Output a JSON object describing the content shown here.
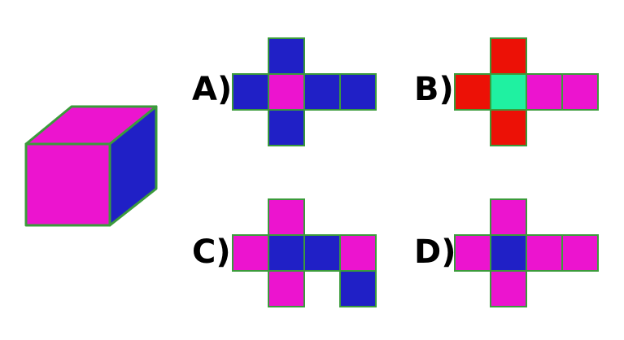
{
  "colors": {
    "magenta": "#ec14cf",
    "blue": "#2020c6",
    "red": "#ec1106",
    "green": "#1ff1a1",
    "edge": "#3b9b3b"
  },
  "cube": {
    "faces": {
      "front": "magenta",
      "top": "magenta",
      "right": "blue"
    }
  },
  "options": [
    {
      "label": "A)",
      "cells": [
        {
          "col": 1,
          "row": 0,
          "color": "blue"
        },
        {
          "col": 0,
          "row": 1,
          "color": "blue"
        },
        {
          "col": 1,
          "row": 1,
          "color": "magenta"
        },
        {
          "col": 2,
          "row": 1,
          "color": "blue"
        },
        {
          "col": 3,
          "row": 1,
          "color": "blue"
        },
        {
          "col": 1,
          "row": 2,
          "color": "blue"
        }
      ]
    },
    {
      "label": "B)",
      "cells": [
        {
          "col": 1,
          "row": 0,
          "color": "red"
        },
        {
          "col": 0,
          "row": 1,
          "color": "red"
        },
        {
          "col": 1,
          "row": 1,
          "color": "green"
        },
        {
          "col": 2,
          "row": 1,
          "color": "magenta"
        },
        {
          "col": 3,
          "row": 1,
          "color": "magenta"
        },
        {
          "col": 1,
          "row": 2,
          "color": "red"
        }
      ]
    },
    {
      "label": "C)",
      "cells": [
        {
          "col": 1,
          "row": 0,
          "color": "magenta"
        },
        {
          "col": 0,
          "row": 1,
          "color": "magenta"
        },
        {
          "col": 1,
          "row": 1,
          "color": "blue"
        },
        {
          "col": 2,
          "row": 1,
          "color": "blue"
        },
        {
          "col": 3,
          "row": 1,
          "color": "magenta"
        },
        {
          "col": 1,
          "row": 2,
          "color": "magenta"
        },
        {
          "col": 3,
          "row": 2,
          "color": "blue"
        }
      ]
    },
    {
      "label": "D)",
      "cells": [
        {
          "col": 1,
          "row": 0,
          "color": "magenta"
        },
        {
          "col": 0,
          "row": 1,
          "color": "magenta"
        },
        {
          "col": 1,
          "row": 1,
          "color": "blue"
        },
        {
          "col": 2,
          "row": 1,
          "color": "magenta"
        },
        {
          "col": 3,
          "row": 1,
          "color": "magenta"
        },
        {
          "col": 1,
          "row": 2,
          "color": "magenta"
        }
      ]
    }
  ]
}
